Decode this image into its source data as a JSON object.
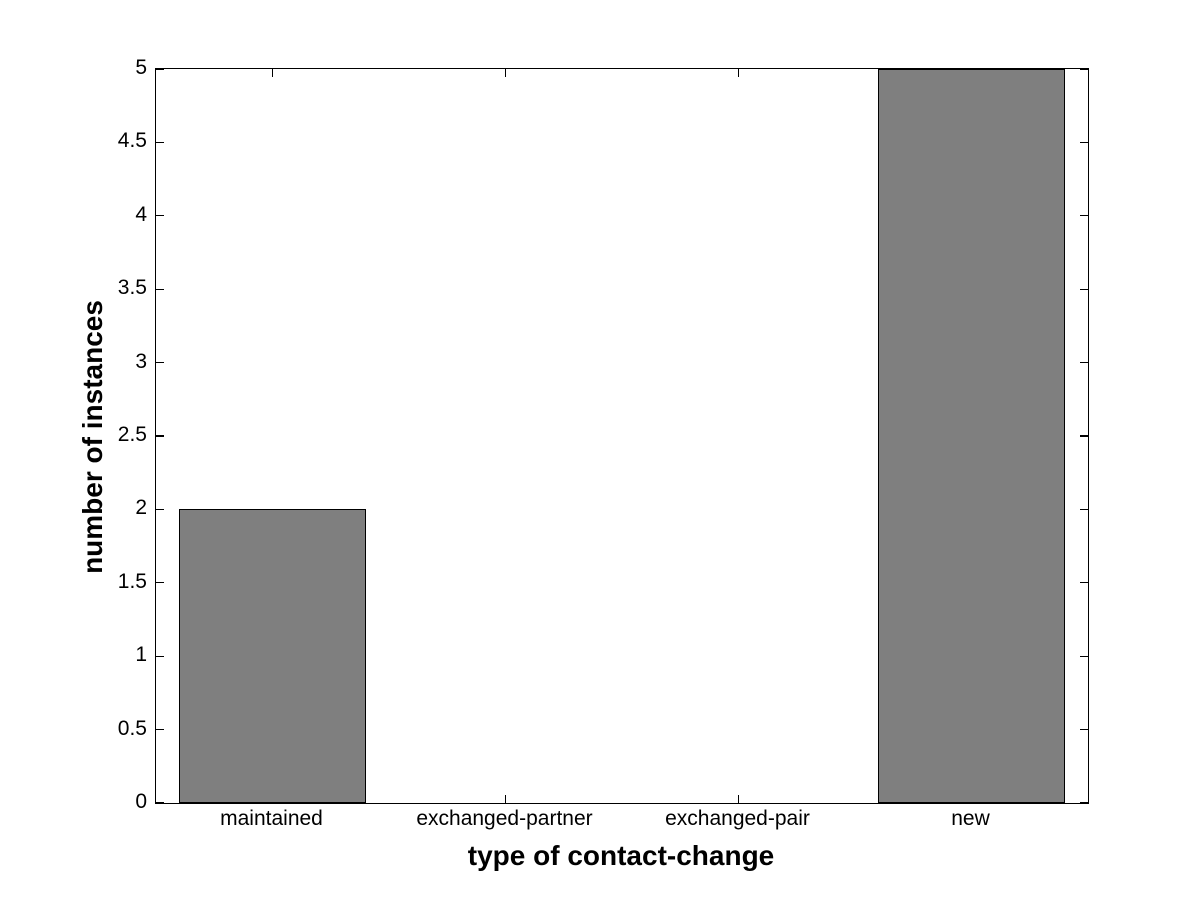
{
  "chart_data": {
    "type": "bar",
    "title": "",
    "categories": [
      "maintained",
      "exchanged-partner",
      "exchanged-pair",
      "new"
    ],
    "values": [
      2,
      0,
      0,
      5
    ],
    "xlabel": "type of contact-change",
    "ylabel": "number of instances",
    "ylim": [
      0,
      5
    ],
    "ytick_step": 0.5,
    "ytick_labels": [
      "0",
      "0.5",
      "1",
      "1.5",
      "2",
      "2.5",
      "3",
      "3.5",
      "4",
      "4.5",
      "5"
    ],
    "xlim": [
      0.5,
      4.5
    ],
    "bar_width": 0.8,
    "bar_color": "#7F7F7F",
    "bar_edge_color": "#000000",
    "axis_color": "#000000",
    "background_color": "#FFFFFF",
    "grid": false,
    "legend": null,
    "box": true,
    "tick_direction": "in"
  }
}
